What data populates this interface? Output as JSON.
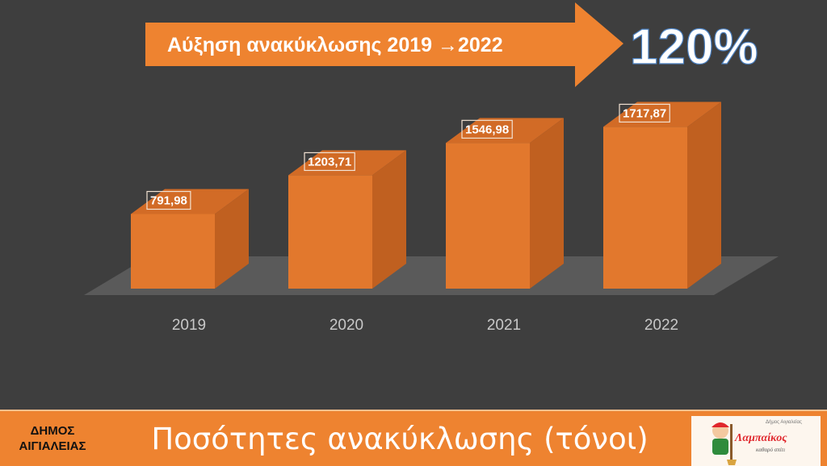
{
  "banner": {
    "text": "Αύξηση ανακύκλωσης  2019 →2022",
    "percent": "120%"
  },
  "chart_data": {
    "type": "bar",
    "title": "",
    "xlabel": "",
    "ylabel": "Ποσότητες ανακύκλωσης (τόνοι)",
    "categories": [
      "2019",
      "2020",
      "2021",
      "2022"
    ],
    "values": [
      791.98,
      1203.71,
      1546.98,
      1717.87
    ],
    "data_labels": [
      "791,98",
      "1203,71",
      "1546,98",
      "1717,87"
    ],
    "ylim": [
      0,
      1800
    ],
    "grid": false,
    "legend": "none",
    "colors": {
      "front": "#e2782d",
      "side": "#c06020",
      "top": "#d26b26",
      "floor": "#5a5a5a"
    }
  },
  "footer": {
    "municipality_line1": "ΔΗΜΟΣ",
    "municipality_line2": "ΑΙΓΙΑΛΕΙΑΣ",
    "title": "Ποσότητες ανακύκλωσης (τόνοι)"
  },
  "logo": {
    "caption": "Δήμος Αιγιαλείας",
    "name": "Λαμπαίκος",
    "tagline": "καθαρό σπίτι",
    "icon": "mascot-icon"
  }
}
